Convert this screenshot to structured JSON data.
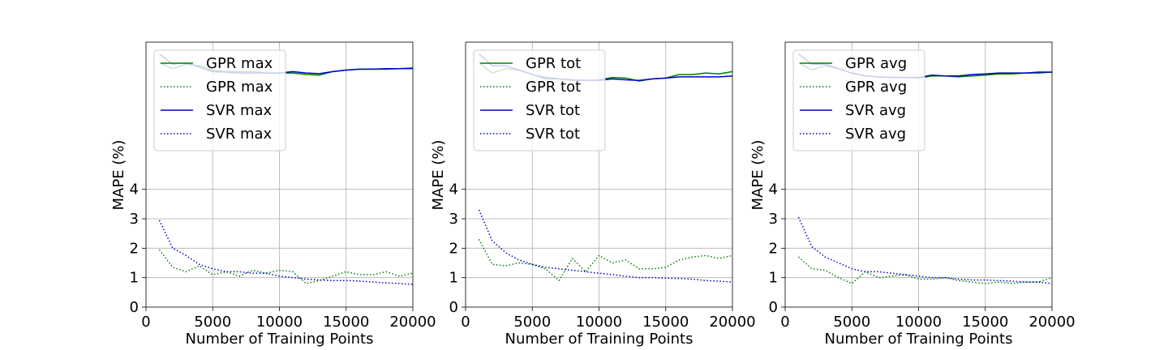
{
  "chart_data": [
    {
      "type": "line",
      "xlabel": "Number of Training Points",
      "ylabel": "MAPE (%)",
      "xlim": [
        0,
        20000
      ],
      "ylim": [
        0,
        9.0
      ],
      "xticks": [
        0,
        5000,
        10000,
        15000,
        20000
      ],
      "yticks": [
        0,
        1,
        2,
        3,
        4
      ],
      "grid": true,
      "legend_position": "top-left",
      "series": [
        {
          "name": "GPR max",
          "color": "#008000",
          "style": "solid",
          "x": [
            1000,
            2000,
            3000,
            4000,
            5000,
            6000,
            7000,
            8000,
            9000,
            10000,
            11000,
            12000,
            13000,
            14000,
            15000,
            16000,
            17000,
            18000,
            19000,
            20000
          ],
          "y": [
            8.3,
            8.1,
            8.25,
            8.2,
            8.05,
            8.0,
            8.0,
            8.0,
            7.95,
            7.95,
            7.95,
            7.9,
            7.88,
            8.0,
            8.05,
            8.08,
            8.08,
            8.08,
            8.1,
            8.1
          ]
        },
        {
          "name": "GPR max",
          "color": "#008000",
          "style": "dotted",
          "x": [
            1000,
            2000,
            3000,
            4000,
            5000,
            6000,
            7000,
            8000,
            9000,
            10000,
            11000,
            12000,
            13000,
            14000,
            15000,
            16000,
            17000,
            18000,
            19000,
            20000
          ],
          "y": [
            1.95,
            1.35,
            1.2,
            1.4,
            1.1,
            1.2,
            1.05,
            1.25,
            1.15,
            1.25,
            1.2,
            0.8,
            0.9,
            1.05,
            1.2,
            1.1,
            1.1,
            1.2,
            1.05,
            1.15
          ]
        },
        {
          "name": "SVR max",
          "color": "#0000cc",
          "style": "solid",
          "x": [
            1000,
            2000,
            3000,
            4000,
            5000,
            6000,
            7000,
            8000,
            9000,
            10000,
            11000,
            12000,
            13000,
            14000,
            15000,
            16000,
            17000,
            18000,
            19000,
            20000
          ],
          "y": [
            8.6,
            8.25,
            8.3,
            8.15,
            8.0,
            7.98,
            7.95,
            7.95,
            7.95,
            7.95,
            8.0,
            7.95,
            7.93,
            8.0,
            8.05,
            8.08,
            8.08,
            8.1,
            8.1,
            8.12
          ]
        },
        {
          "name": "SVR max",
          "color": "#0000cc",
          "style": "dotted",
          "x": [
            1000,
            2000,
            3000,
            4000,
            5000,
            6000,
            7000,
            8000,
            9000,
            10000,
            11000,
            12000,
            13000,
            14000,
            15000,
            16000,
            17000,
            18000,
            19000,
            20000
          ],
          "y": [
            2.95,
            2.0,
            1.75,
            1.45,
            1.3,
            1.2,
            1.2,
            1.15,
            1.15,
            1.05,
            1.0,
            0.95,
            0.92,
            0.9,
            0.9,
            0.88,
            0.85,
            0.82,
            0.8,
            0.77
          ]
        }
      ]
    },
    {
      "type": "line",
      "xlabel": "Number of Training Points",
      "ylabel": "MAPE (%)",
      "xlim": [
        0,
        20000
      ],
      "ylim": [
        0,
        9.0
      ],
      "xticks": [
        0,
        5000,
        10000,
        15000,
        20000
      ],
      "yticks": [
        0,
        1,
        2,
        3,
        4
      ],
      "grid": true,
      "legend_position": "top-left",
      "series": [
        {
          "name": "GPR tot",
          "color": "#008000",
          "style": "solid",
          "x": [
            1000,
            2000,
            3000,
            4000,
            5000,
            6000,
            7000,
            8000,
            9000,
            10000,
            11000,
            12000,
            13000,
            14000,
            15000,
            16000,
            17000,
            18000,
            19000,
            20000
          ],
          "y": [
            8.3,
            7.95,
            8.1,
            8.05,
            7.9,
            7.75,
            7.75,
            7.7,
            7.7,
            7.72,
            7.8,
            7.78,
            7.68,
            7.75,
            7.78,
            7.9,
            7.9,
            7.95,
            7.92,
            8.0
          ]
        },
        {
          "name": "GPR tot",
          "color": "#008000",
          "style": "dotted",
          "x": [
            1000,
            2000,
            3000,
            4000,
            5000,
            6000,
            7000,
            8000,
            9000,
            10000,
            11000,
            12000,
            13000,
            14000,
            15000,
            16000,
            17000,
            18000,
            19000,
            20000
          ],
          "y": [
            2.3,
            1.45,
            1.4,
            1.5,
            1.45,
            1.3,
            0.9,
            1.65,
            1.2,
            1.75,
            1.5,
            1.6,
            1.3,
            1.3,
            1.35,
            1.6,
            1.7,
            1.75,
            1.65,
            1.75
          ]
        },
        {
          "name": "SVR tot",
          "color": "#0000cc",
          "style": "solid",
          "x": [
            1000,
            2000,
            3000,
            4000,
            5000,
            6000,
            7000,
            8000,
            9000,
            10000,
            11000,
            12000,
            13000,
            14000,
            15000,
            16000,
            17000,
            18000,
            19000,
            20000
          ],
          "y": [
            8.6,
            8.2,
            8.2,
            8.05,
            7.9,
            7.8,
            7.75,
            7.72,
            7.7,
            7.7,
            7.75,
            7.72,
            7.7,
            7.75,
            7.78,
            7.82,
            7.82,
            7.82,
            7.82,
            7.85
          ]
        },
        {
          "name": "SVR tot",
          "color": "#0000cc",
          "style": "dotted",
          "x": [
            1000,
            2000,
            3000,
            4000,
            5000,
            6000,
            7000,
            8000,
            9000,
            10000,
            11000,
            12000,
            13000,
            14000,
            15000,
            16000,
            17000,
            18000,
            19000,
            20000
          ],
          "y": [
            3.3,
            2.25,
            1.85,
            1.6,
            1.45,
            1.35,
            1.3,
            1.25,
            1.2,
            1.15,
            1.1,
            1.05,
            1.0,
            1.0,
            0.98,
            0.97,
            0.95,
            0.9,
            0.88,
            0.85
          ]
        }
      ]
    },
    {
      "type": "line",
      "xlabel": "Number of Training Points",
      "ylabel": "MAPE (%)",
      "xlim": [
        0,
        20000
      ],
      "ylim": [
        0,
        9.0
      ],
      "xticks": [
        0,
        5000,
        10000,
        15000,
        20000
      ],
      "yticks": [
        0,
        1,
        2,
        3,
        4
      ],
      "grid": true,
      "legend_position": "top-left",
      "series": [
        {
          "name": "GPR avg",
          "color": "#008000",
          "style": "solid",
          "x": [
            1000,
            2000,
            3000,
            4000,
            5000,
            6000,
            7000,
            8000,
            9000,
            10000,
            11000,
            12000,
            13000,
            14000,
            15000,
            16000,
            17000,
            18000,
            19000,
            20000
          ],
          "y": [
            8.3,
            8.05,
            8.2,
            8.1,
            7.95,
            7.85,
            7.82,
            7.8,
            7.8,
            7.78,
            7.85,
            7.85,
            7.82,
            7.85,
            7.88,
            7.92,
            7.92,
            7.95,
            7.95,
            7.98
          ]
        },
        {
          "name": "GPR avg",
          "color": "#008000",
          "style": "dotted",
          "x": [
            1000,
            2000,
            3000,
            4000,
            5000,
            6000,
            7000,
            8000,
            9000,
            10000,
            11000,
            12000,
            13000,
            14000,
            15000,
            16000,
            17000,
            18000,
            19000,
            20000
          ],
          "y": [
            1.7,
            1.3,
            1.25,
            1.0,
            0.8,
            1.2,
            1.0,
            1.05,
            1.1,
            0.95,
            0.95,
            1.0,
            0.9,
            0.85,
            0.8,
            0.85,
            0.8,
            0.85,
            0.85,
            1.0
          ]
        },
        {
          "name": "SVR avg",
          "color": "#0000cc",
          "style": "solid",
          "x": [
            1000,
            2000,
            3000,
            4000,
            5000,
            6000,
            7000,
            8000,
            9000,
            10000,
            11000,
            12000,
            13000,
            14000,
            15000,
            16000,
            17000,
            18000,
            19000,
            20000
          ],
          "y": [
            8.6,
            8.25,
            8.25,
            8.1,
            7.95,
            7.85,
            7.82,
            7.8,
            7.8,
            7.8,
            7.88,
            7.85,
            7.85,
            7.9,
            7.92,
            7.95,
            7.95,
            7.95,
            7.98,
            7.98
          ]
        },
        {
          "name": "SVR avg",
          "color": "#0000cc",
          "style": "dotted",
          "x": [
            1000,
            2000,
            3000,
            4000,
            5000,
            6000,
            7000,
            8000,
            9000,
            10000,
            11000,
            12000,
            13000,
            14000,
            15000,
            16000,
            17000,
            18000,
            19000,
            20000
          ],
          "y": [
            3.05,
            2.05,
            1.7,
            1.5,
            1.3,
            1.2,
            1.2,
            1.15,
            1.1,
            1.05,
            1.0,
            1.0,
            0.95,
            0.92,
            0.92,
            0.9,
            0.88,
            0.85,
            0.85,
            0.8
          ]
        }
      ]
    }
  ]
}
